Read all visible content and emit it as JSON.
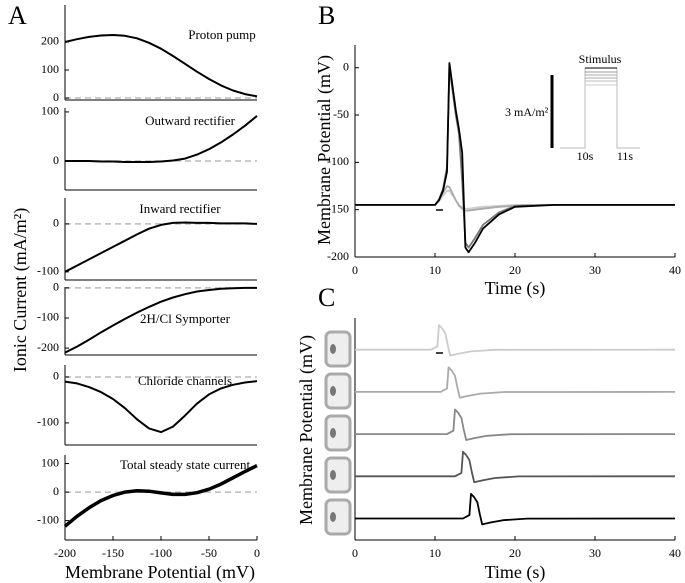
{
  "chart_data": [
    {
      "type": "line",
      "panel_label": "A",
      "ylabel": "Ionic Current (mA/m²)",
      "title": "Proton pump",
      "x": [
        -200,
        -187.5,
        -175,
        -162.5,
        -150,
        -137.5,
        -125,
        -112.5,
        -100,
        -87.5,
        -75,
        -62.5,
        -50,
        -37.5,
        -25,
        -12.5,
        0
      ],
      "series": [
        {
          "color": "#000000",
          "values": [
            200,
            210,
            218,
            223,
            225,
            222,
            213,
            197,
            176,
            150,
            122,
            94,
            68,
            45,
            27,
            14,
            6
          ]
        }
      ],
      "xlim": [
        -200,
        0
      ],
      "ylim": [
        -7,
        332
      ],
      "yticks": [
        0,
        100,
        200
      ],
      "zero_line": true
    },
    {
      "type": "line",
      "title": "Outward rectifier",
      "x": [
        -200,
        -187.5,
        -175,
        -162.5,
        -150,
        -137.5,
        -125,
        -112.5,
        -100,
        -87.5,
        -75,
        -62.5,
        -50,
        -37.5,
        -25,
        -12.5,
        0
      ],
      "series": [
        {
          "color": "#000000",
          "values": [
            0,
            0,
            0,
            -1,
            -1,
            -2,
            -2,
            -2,
            -1,
            1,
            5,
            13,
            24,
            38,
            54,
            72,
            92
          ]
        }
      ],
      "xlim": [
        -200,
        0
      ],
      "ylim": [
        -59,
        108
      ],
      "yticks": [
        0,
        100
      ],
      "zero_line": true
    },
    {
      "type": "line",
      "title": "Inward rectifier",
      "x": [
        -200,
        -187.5,
        -175,
        -162.5,
        -150,
        -137.5,
        -125,
        -112.5,
        -100,
        -87.5,
        -75,
        -62.5,
        -50,
        -37.5,
        -25,
        -12.5,
        0
      ],
      "series": [
        {
          "color": "#000000",
          "values": [
            -100,
            -87,
            -74,
            -61,
            -48,
            -35,
            -22,
            -10,
            -2,
            2,
            3,
            2,
            2,
            1,
            1,
            1,
            0
          ]
        }
      ],
      "xlim": [
        -200,
        0
      ],
      "ylim": [
        -117,
        54
      ],
      "yticks": [
        -100,
        0
      ],
      "zero_line": true
    },
    {
      "type": "line",
      "title": "2H/Cl Symporter",
      "x": [
        -200,
        -187.5,
        -175,
        -162.5,
        -150,
        -137.5,
        -125,
        -112.5,
        -100,
        -87.5,
        -75,
        -62.5,
        -50,
        -37.5,
        -25,
        -12.5,
        0
      ],
      "series": [
        {
          "color": "#000000",
          "values": [
            -215,
            -195,
            -172,
            -148,
            -125,
            -103,
            -82,
            -63,
            -46,
            -32,
            -21,
            -12,
            -7,
            -3,
            -1,
            0,
            0
          ]
        }
      ],
      "xlim": [
        -200,
        0
      ],
      "ylim": [
        -223,
        3
      ],
      "yticks": [
        -200,
        -100,
        0
      ],
      "zero_line": true
    },
    {
      "type": "line",
      "title": "Chloride channels",
      "x": [
        -200,
        -187.5,
        -175,
        -162.5,
        -150,
        -137.5,
        -125,
        -112.5,
        -100,
        -87.5,
        -75,
        -62.5,
        -50,
        -37.5,
        -25,
        -12.5,
        0
      ],
      "series": [
        {
          "color": "#000000",
          "values": [
            -10,
            -14,
            -22,
            -33,
            -48,
            -68,
            -92,
            -112,
            -120,
            -108,
            -84,
            -58,
            -38,
            -25,
            -17,
            -12,
            -9
          ]
        }
      ],
      "xlim": [
        -200,
        0
      ],
      "ylim": [
        -148,
        26
      ],
      "yticks": [
        -100,
        0
      ],
      "zero_line": true
    },
    {
      "type": "line",
      "title": "Total steady state current",
      "xlabel": "Membrane Potential (mV)",
      "x": [
        -200,
        -187.5,
        -175,
        -162.5,
        -150,
        -137.5,
        -125,
        -112.5,
        -100,
        -87.5,
        -75,
        -62.5,
        -50,
        -37.5,
        -25,
        -12.5,
        0
      ],
      "series": [
        {
          "color": "#000000",
          "values": [
            -120,
            -85,
            -55,
            -30,
            -12,
            0,
            5,
            3,
            -3,
            -8,
            -8,
            -2,
            10,
            28,
            50,
            72,
            93
          ]
        }
      ],
      "xlim": [
        -200,
        0
      ],
      "ylim": [
        -168,
        130
      ],
      "xticks": [
        -200,
        -150,
        -100,
        -50,
        0
      ],
      "yticks": [
        -100,
        0,
        100
      ],
      "zero_line": true
    },
    {
      "type": "line",
      "panel_label": "B",
      "xlabel": "Time (s)",
      "ylabel": "Membrane Potential (mV)",
      "x": [
        0,
        10,
        10.5,
        11,
        11.5,
        11.8,
        12.2,
        12.6,
        13,
        13.4,
        13.8,
        14.2,
        15,
        16,
        18,
        20,
        25,
        40
      ],
      "series": [
        {
          "color": "#cccccc",
          "values": [
            -145,
            -145,
            -141,
            -135,
            -130,
            -130,
            -135,
            -140,
            -145,
            -148,
            -149,
            -149,
            -148,
            -147,
            -146,
            -145,
            -145,
            -145
          ]
        },
        {
          "color": "#aaaaaa",
          "values": [
            -145,
            -145,
            -140,
            -132,
            -125,
            -126,
            -133,
            -140,
            -146,
            -149,
            -151,
            -151,
            -150,
            -149,
            -147,
            -146,
            -145,
            -145
          ]
        },
        {
          "color": "#777777",
          "values": [
            -145,
            -145,
            -139,
            -128,
            -105,
            0,
            -25,
            -50,
            -70,
            -120,
            -185,
            -190,
            -180,
            -166,
            -153,
            -146,
            -145,
            -145
          ]
        },
        {
          "color": "#000000",
          "values": [
            -145,
            -145,
            -140,
            -130,
            -110,
            5,
            -20,
            -45,
            -65,
            -90,
            -190,
            -195,
            -185,
            -170,
            -155,
            -147,
            -145,
            -145
          ]
        }
      ],
      "xlim": [
        0,
        40
      ],
      "ylim": [
        -200,
        24
      ],
      "xticks": [
        0,
        10,
        20,
        30,
        40
      ],
      "yticks": [
        0,
        -50,
        -100,
        -150,
        -200
      ],
      "inset": {
        "title": "Stimulus",
        "scale_label": "3 mA/m²",
        "tick_labels": [
          "10s",
          "11s"
        ]
      }
    },
    {
      "type": "line",
      "panel_label": "C",
      "xlabel": "Time (s)",
      "ylabel": "Membrane Potential (mV)",
      "series": [
        {
          "color": "#cccccc",
          "x": [
            0,
            9.5,
            10.3,
            10.5,
            10.9,
            11.3,
            11.6,
            11.9,
            13,
            14.5,
            17.5,
            40
          ],
          "values": [
            -145,
            -145,
            -125,
            0,
            -20,
            -50,
            -120,
            -180,
            -168,
            -155,
            -146,
            -145
          ]
        },
        {
          "color": "#aaaaaa",
          "x": [
            0,
            10.7,
            11.5,
            11.7,
            12.1,
            12.5,
            12.8,
            13.1,
            14.2,
            15.7,
            18.7,
            40
          ],
          "values": [
            -145,
            -145,
            -125,
            0,
            -20,
            -50,
            -120,
            -180,
            -168,
            -155,
            -146,
            -145
          ]
        },
        {
          "color": "#888888",
          "x": [
            0,
            11.5,
            12.3,
            12.5,
            12.9,
            13.3,
            13.6,
            13.9,
            15,
            16.5,
            19.5,
            40
          ],
          "values": [
            -145,
            -145,
            -125,
            0,
            -20,
            -50,
            -120,
            -180,
            -168,
            -155,
            -146,
            -145
          ]
        },
        {
          "color": "#555555",
          "x": [
            0,
            12.5,
            13.3,
            13.5,
            13.9,
            14.3,
            14.6,
            14.9,
            16,
            17.5,
            20.5,
            40
          ],
          "values": [
            -145,
            -145,
            -125,
            0,
            -20,
            -50,
            -120,
            -180,
            -168,
            -155,
            -146,
            -145
          ]
        },
        {
          "color": "#000000",
          "x": [
            0,
            13.5,
            14.3,
            14.5,
            14.9,
            15.3,
            15.6,
            15.9,
            17,
            18.5,
            21.5,
            40
          ],
          "values": [
            -145,
            -145,
            -125,
            0,
            -20,
            -50,
            -120,
            -180,
            -168,
            -155,
            -146,
            -145
          ]
        }
      ],
      "xlim": [
        0,
        40
      ],
      "ylim": [
        -200,
        24
      ],
      "xticks": [
        0,
        10,
        20,
        30,
        40
      ]
    }
  ]
}
